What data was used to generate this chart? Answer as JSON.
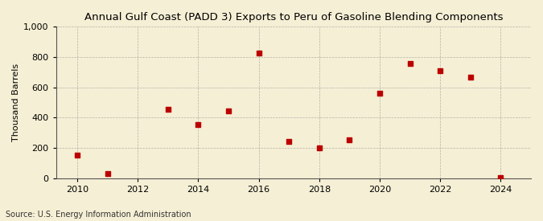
{
  "title": "Annual Gulf Coast (PADD 3) Exports to Peru of Gasoline Blending Components",
  "ylabel": "Thousand Barrels",
  "source": "Source: U.S. Energy Information Administration",
  "years": [
    2010,
    2011,
    2013,
    2014,
    2015,
    2016,
    2017,
    2018,
    2019,
    2020,
    2021,
    2022,
    2023,
    2024
  ],
  "values": [
    150,
    30,
    455,
    355,
    445,
    825,
    245,
    200,
    255,
    560,
    760,
    710,
    670,
    5
  ],
  "xlim": [
    2009.3,
    2025.0
  ],
  "ylim": [
    0,
    1000
  ],
  "yticks": [
    0,
    200,
    400,
    600,
    800,
    1000
  ],
  "xticks": [
    2010,
    2012,
    2014,
    2016,
    2018,
    2020,
    2022,
    2024
  ],
  "marker_color": "#bb0000",
  "marker": "s",
  "marker_size": 4,
  "bg_color": "#f5efd5",
  "grid_color": "#999999",
  "title_fontsize": 9.5,
  "label_fontsize": 8,
  "tick_fontsize": 8,
  "source_fontsize": 7
}
